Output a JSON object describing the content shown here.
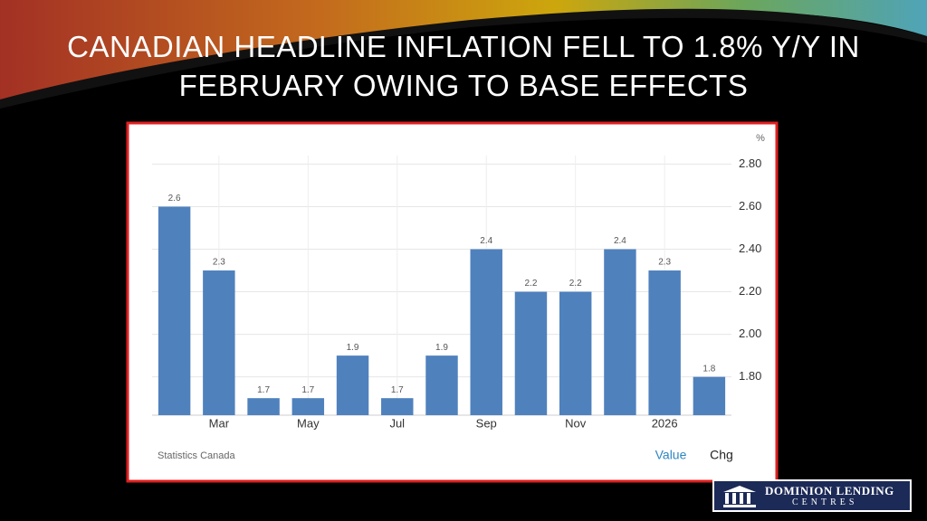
{
  "slide": {
    "title": "CANADIAN HEADLINE INFLATION FELL TO 1.8% Y/Y IN FEBRUARY OWING TO BASE EFFECTS"
  },
  "chart_data": {
    "type": "bar",
    "unit": "%",
    "source": "Statistics Canada",
    "categories": [
      null,
      "Mar",
      null,
      "May",
      null,
      "Jul",
      null,
      "Sep",
      null,
      "Nov",
      null,
      "2026",
      null
    ],
    "series": [
      {
        "name": "Value",
        "color": "#4f81bd",
        "values": [
          2.6,
          2.3,
          1.7,
          1.7,
          1.9,
          1.7,
          1.9,
          2.4,
          2.2,
          2.2,
          2.4,
          2.3,
          1.8
        ]
      }
    ],
    "legend_other": "Chg",
    "ylim": [
      1.62,
      2.84
    ],
    "yticks": [
      {
        "value": 1.8,
        "label": "1.80"
      },
      {
        "value": 2.0,
        "label": "2.00"
      },
      {
        "value": 2.2,
        "label": "2.20"
      },
      {
        "value": 2.4,
        "label": "2.40"
      },
      {
        "value": 2.6,
        "label": "2.60"
      },
      {
        "value": 2.8,
        "label": "2.80"
      }
    ],
    "grid": true
  },
  "logo": {
    "line1": "DOMINION LENDING",
    "line2": "CENTRES"
  }
}
